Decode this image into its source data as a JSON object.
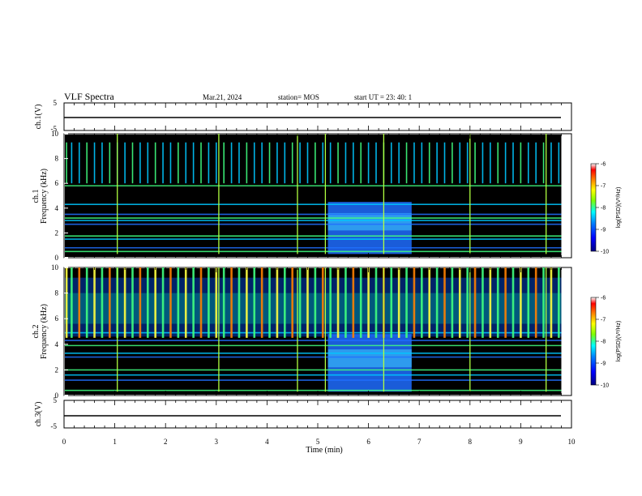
{
  "header": {
    "title": "VLF Spectra",
    "date": "Mar.21, 2024",
    "station": "station= MOS",
    "start_ut": "start UT =  23: 40: 1"
  },
  "colors": {
    "background": "#000000",
    "trace": "#000000",
    "colormap": [
      "#000080",
      "#0000ff",
      "#0080ff",
      "#00ffff",
      "#80ff00",
      "#ffff00",
      "#ff8000",
      "#ff0000",
      "#ffffff"
    ]
  },
  "panels": {
    "ch1_volt": {
      "ylabel": "ch.1(V)",
      "ymax_label": "5",
      "ymin_label": "-5"
    },
    "ch1_spec": {
      "ylabel_line1": "ch.1",
      "ylabel_line2": "Frequency (kHz)"
    },
    "ch2_spec": {
      "ylabel_line1": "ch.2",
      "ylabel_line2": "Frequency (kHz)"
    },
    "ch3_volt": {
      "ylabel": "ch.3(V)",
      "ymax_label": "5",
      "ymin_label": "-5"
    }
  },
  "colorbar": {
    "label": "log(PSD)(V²/Hz)",
    "ticks": [
      "-6",
      "-7",
      "-8",
      "-9",
      "-10"
    ]
  },
  "chart_data": {
    "type": "heatmap",
    "title": "VLF Spectra",
    "xlabel": "Time (min)",
    "ylabel": "Frequency (kHz)",
    "xlim": [
      0,
      10
    ],
    "ylim": [
      0,
      10
    ],
    "x_ticks": [
      "0",
      "1",
      "2",
      "3",
      "4",
      "5",
      "6",
      "7",
      "8",
      "9",
      "10"
    ],
    "y_ticks": [
      "0",
      "2",
      "4",
      "6",
      "8",
      "10"
    ],
    "data_end_min": 9.8,
    "color_range": [
      -10,
      -6
    ],
    "broadband_burst_min": [
      5.2,
      6.85
    ],
    "sferic_times_min": [
      0.05,
      0.15,
      0.3,
      0.45,
      0.6,
      0.75,
      0.9,
      1.05,
      1.2,
      1.35,
      1.5,
      1.65,
      1.8,
      1.95,
      2.1,
      2.25,
      2.4,
      2.55,
      2.7,
      2.85,
      3.0,
      3.15,
      3.3,
      3.45,
      3.6,
      3.75,
      3.9,
      4.05,
      4.2,
      4.35,
      4.5,
      4.65,
      4.8,
      4.95,
      5.1,
      5.25,
      5.4,
      5.55,
      5.7,
      5.85,
      6.0,
      6.15,
      6.3,
      6.45,
      6.6,
      6.75,
      6.9,
      7.05,
      7.2,
      7.35,
      7.5,
      7.65,
      7.8,
      7.95,
      8.1,
      8.25,
      8.4,
      8.55,
      8.7,
      8.85,
      9.0,
      9.15,
      9.3,
      9.45,
      9.6,
      9.75
    ],
    "bright_sferic_times_min": [
      1.05,
      3.05,
      4.6,
      5.15,
      6.3,
      8.0,
      9.5
    ],
    "ch1_tones_khz": [
      0.5,
      0.8,
      1.5,
      1.75,
      2.7,
      3.0,
      3.2,
      3.5,
      4.3,
      5.8
    ],
    "ch2_tones_khz": [
      0.4,
      1.2,
      1.6,
      2.0,
      3.0,
      3.3,
      3.9,
      4.3,
      4.9
    ],
    "ch1_volt_level": 0,
    "ch3_volt_level": 0
  }
}
